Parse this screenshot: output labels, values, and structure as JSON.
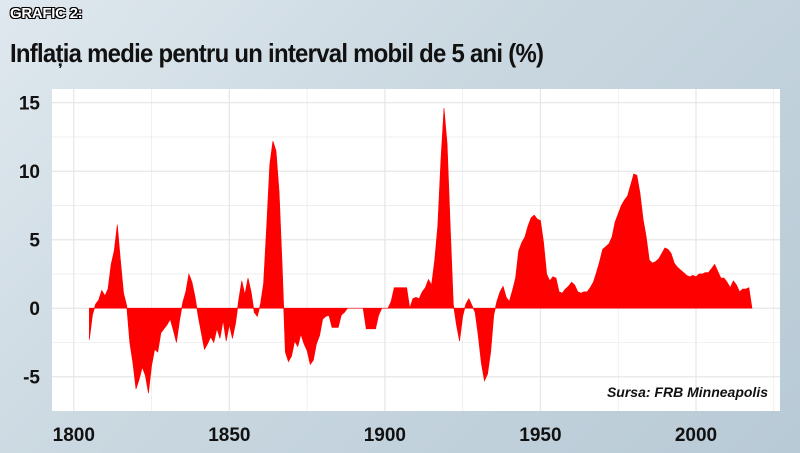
{
  "header": {
    "kicker": "GRAFIC 2:",
    "title": "Inflația medie pentru un interval mobil de 5 ani (%)"
  },
  "source": "Sursa: FRB Minneapolis",
  "colors": {
    "area": "#ff0000",
    "plot_bg": "#ffffff",
    "grid": "#e6e6e6"
  },
  "chart_data": {
    "type": "area",
    "title": "Inflația medie pentru un interval mobil de 5 ani (%)",
    "xlabel": "",
    "ylabel": "",
    "xlim": [
      1793,
      2027
    ],
    "ylim": [
      -7.5,
      16
    ],
    "x_ticks": [
      1800,
      1850,
      1900,
      1950,
      2000
    ],
    "y_ticks": [
      -5,
      0,
      5,
      10,
      15
    ],
    "grid": true,
    "baseline": 0,
    "points": [
      [
        1805,
        -2.3
      ],
      [
        1806,
        -0.5
      ],
      [
        1807,
        0.3
      ],
      [
        1808,
        0.6
      ],
      [
        1809,
        1.3
      ],
      [
        1810,
        0.9
      ],
      [
        1811,
        1.4
      ],
      [
        1812,
        3.2
      ],
      [
        1813,
        4.2
      ],
      [
        1814,
        6.1
      ],
      [
        1815,
        3.5
      ],
      [
        1816,
        1.1
      ],
      [
        1817,
        0.2
      ],
      [
        1818,
        -2.5
      ],
      [
        1819,
        -4.0
      ],
      [
        1820,
        -5.9
      ],
      [
        1821,
        -5.2
      ],
      [
        1822,
        -4.3
      ],
      [
        1823,
        -4.9
      ],
      [
        1824,
        -6.2
      ],
      [
        1825,
        -4.2
      ],
      [
        1826,
        -3.0
      ],
      [
        1827,
        -3.2
      ],
      [
        1828,
        -1.8
      ],
      [
        1829,
        -1.5
      ],
      [
        1830,
        -1.2
      ],
      [
        1831,
        -0.8
      ],
      [
        1832,
        -1.6
      ],
      [
        1833,
        -2.5
      ],
      [
        1834,
        -0.9
      ],
      [
        1835,
        0.4
      ],
      [
        1836,
        1.2
      ],
      [
        1837,
        2.5
      ],
      [
        1838,
        1.9
      ],
      [
        1839,
        0.8
      ],
      [
        1840,
        -0.6
      ],
      [
        1841,
        -1.8
      ],
      [
        1842,
        -3.0
      ],
      [
        1843,
        -2.6
      ],
      [
        1844,
        -2.1
      ],
      [
        1845,
        -2.5
      ],
      [
        1846,
        -1.5
      ],
      [
        1847,
        -2.2
      ],
      [
        1848,
        -0.9
      ],
      [
        1849,
        -2.4
      ],
      [
        1850,
        -1.2
      ],
      [
        1851,
        -2.2
      ],
      [
        1852,
        -1.1
      ],
      [
        1853,
        0.6
      ],
      [
        1854,
        2.0
      ],
      [
        1855,
        1.0
      ],
      [
        1856,
        2.2
      ],
      [
        1857,
        1.2
      ],
      [
        1858,
        -0.3
      ],
      [
        1859,
        -0.6
      ],
      [
        1860,
        0.3
      ],
      [
        1861,
        1.8
      ],
      [
        1862,
        6.0
      ],
      [
        1863,
        10.5
      ],
      [
        1864,
        12.2
      ],
      [
        1865,
        11.5
      ],
      [
        1866,
        8.5
      ],
      [
        1867,
        3.0
      ],
      [
        1868,
        -3.2
      ],
      [
        1869,
        -3.9
      ],
      [
        1870,
        -3.5
      ],
      [
        1871,
        -2.4
      ],
      [
        1872,
        -2.8
      ],
      [
        1873,
        -1.9
      ],
      [
        1874,
        -2.6
      ],
      [
        1875,
        -3.1
      ],
      [
        1876,
        -4.1
      ],
      [
        1877,
        -3.8
      ],
      [
        1878,
        -2.6
      ],
      [
        1879,
        -2.0
      ],
      [
        1880,
        -0.8
      ],
      [
        1881,
        -0.6
      ],
      [
        1882,
        -0.5
      ],
      [
        1883,
        -1.4
      ],
      [
        1884,
        -1.4
      ],
      [
        1885,
        -1.4
      ],
      [
        1886,
        -0.5
      ],
      [
        1887,
        -0.3
      ],
      [
        1888,
        0
      ],
      [
        1893,
        0
      ],
      [
        1894,
        -1.5
      ],
      [
        1895,
        -1.5
      ],
      [
        1896,
        -1.5
      ],
      [
        1897,
        -1.5
      ],
      [
        1898,
        -0.5
      ],
      [
        1899,
        0
      ],
      [
        1901,
        0
      ],
      [
        1902,
        0.5
      ],
      [
        1903,
        1.5
      ],
      [
        1904,
        1.5
      ],
      [
        1905,
        1.5
      ],
      [
        1906,
        1.5
      ],
      [
        1907,
        1.5
      ],
      [
        1908,
        0
      ],
      [
        1909,
        0.7
      ],
      [
        1910,
        0.8
      ],
      [
        1911,
        0.7
      ],
      [
        1912,
        1.2
      ],
      [
        1913,
        1.5
      ],
      [
        1914,
        2.1
      ],
      [
        1915,
        1.7
      ],
      [
        1916,
        3.5
      ],
      [
        1917,
        6.0
      ],
      [
        1918,
        10.8
      ],
      [
        1919,
        14.6
      ],
      [
        1920,
        12.0
      ],
      [
        1921,
        6.0
      ],
      [
        1922,
        0.3
      ],
      [
        1923,
        -1.2
      ],
      [
        1924,
        -2.4
      ],
      [
        1925,
        -0.6
      ],
      [
        1926,
        0.3
      ],
      [
        1927,
        0.7
      ],
      [
        1928,
        0.2
      ],
      [
        1929,
        -0.3
      ],
      [
        1930,
        -2.0
      ],
      [
        1931,
        -4.0
      ],
      [
        1932,
        -5.3
      ],
      [
        1933,
        -4.8
      ],
      [
        1934,
        -3.2
      ],
      [
        1935,
        -0.5
      ],
      [
        1936,
        0.5
      ],
      [
        1937,
        1.2
      ],
      [
        1938,
        1.6
      ],
      [
        1939,
        0.8
      ],
      [
        1940,
        0.5
      ],
      [
        1941,
        1.3
      ],
      [
        1942,
        2.2
      ],
      [
        1943,
        4.2
      ],
      [
        1944,
        4.8
      ],
      [
        1945,
        5.2
      ],
      [
        1946,
        6.0
      ],
      [
        1947,
        6.6
      ],
      [
        1948,
        6.8
      ],
      [
        1949,
        6.5
      ],
      [
        1950,
        6.4
      ],
      [
        1951,
        4.8
      ],
      [
        1952,
        2.5
      ],
      [
        1953,
        2.0
      ],
      [
        1954,
        2.3
      ],
      [
        1955,
        2.2
      ],
      [
        1956,
        1.2
      ],
      [
        1957,
        1.1
      ],
      [
        1958,
        1.4
      ],
      [
        1959,
        1.6
      ],
      [
        1960,
        1.9
      ],
      [
        1961,
        1.7
      ],
      [
        1962,
        1.2
      ],
      [
        1963,
        1.1
      ],
      [
        1964,
        1.2
      ],
      [
        1965,
        1.2
      ],
      [
        1966,
        1.5
      ],
      [
        1967,
        1.9
      ],
      [
        1968,
        2.6
      ],
      [
        1969,
        3.4
      ],
      [
        1970,
        4.3
      ],
      [
        1971,
        4.5
      ],
      [
        1972,
        4.7
      ],
      [
        1973,
        5.2
      ],
      [
        1974,
        6.3
      ],
      [
        1975,
        6.9
      ],
      [
        1976,
        7.5
      ],
      [
        1977,
        7.9
      ],
      [
        1978,
        8.2
      ],
      [
        1979,
        9.0
      ],
      [
        1980,
        9.8
      ],
      [
        1981,
        9.7
      ],
      [
        1982,
        8.4
      ],
      [
        1983,
        6.5
      ],
      [
        1984,
        5.2
      ],
      [
        1985,
        3.5
      ],
      [
        1986,
        3.3
      ],
      [
        1987,
        3.4
      ],
      [
        1988,
        3.6
      ],
      [
        1989,
        4.0
      ],
      [
        1990,
        4.4
      ],
      [
        1991,
        4.3
      ],
      [
        1992,
        4.0
      ],
      [
        1993,
        3.3
      ],
      [
        1994,
        3.0
      ],
      [
        1995,
        2.8
      ],
      [
        1996,
        2.6
      ],
      [
        1997,
        2.4
      ],
      [
        1998,
        2.3
      ],
      [
        1999,
        2.4
      ],
      [
        2000,
        2.3
      ],
      [
        2001,
        2.5
      ],
      [
        2002,
        2.5
      ],
      [
        2003,
        2.6
      ],
      [
        2004,
        2.6
      ],
      [
        2005,
        2.9
      ],
      [
        2006,
        3.2
      ],
      [
        2007,
        2.7
      ],
      [
        2008,
        2.2
      ],
      [
        2009,
        2.2
      ],
      [
        2010,
        1.9
      ],
      [
        2011,
        1.5
      ],
      [
        2012,
        2.0
      ],
      [
        2013,
        1.7
      ],
      [
        2014,
        1.2
      ],
      [
        2015,
        1.4
      ],
      [
        2016,
        1.4
      ],
      [
        2017,
        1.5
      ],
      [
        2018,
        0
      ]
    ],
    "annotations": [
      "Sursa: FRB Minneapolis"
    ]
  }
}
